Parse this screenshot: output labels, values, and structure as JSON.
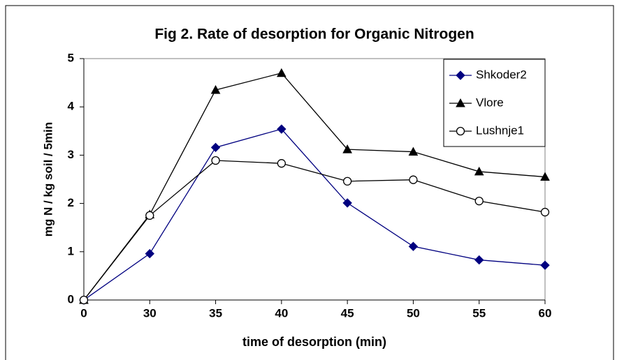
{
  "chart_data": {
    "type": "line",
    "title": "Fig 2. Rate of desorption for Organic Nitrogen",
    "xlabel": "time of desorption (min)",
    "ylabel": "mg N / kg soil / 5min",
    "categories": [
      "0",
      "30",
      "35",
      "40",
      "45",
      "50",
      "55",
      "60"
    ],
    "series": [
      {
        "name": "Shkoder2",
        "color": "#000080",
        "marker": "diamond",
        "values": [
          0,
          0.96,
          3.16,
          3.54,
          2.01,
          1.11,
          0.83,
          0.72
        ]
      },
      {
        "name": "Vlore",
        "color": "#000000",
        "marker": "triangle",
        "values": [
          0,
          1.77,
          4.35,
          4.7,
          3.12,
          3.07,
          2.66,
          2.55
        ]
      },
      {
        "name": "Lushnje1",
        "color": "#000000",
        "marker": "open-circle",
        "values": [
          0,
          1.75,
          2.89,
          2.83,
          2.46,
          2.49,
          2.05,
          1.82
        ]
      }
    ],
    "ylim": [
      0,
      5
    ],
    "yticks": [
      0,
      1,
      2,
      3,
      4,
      5
    ],
    "grid": false,
    "legend": "upper right"
  }
}
